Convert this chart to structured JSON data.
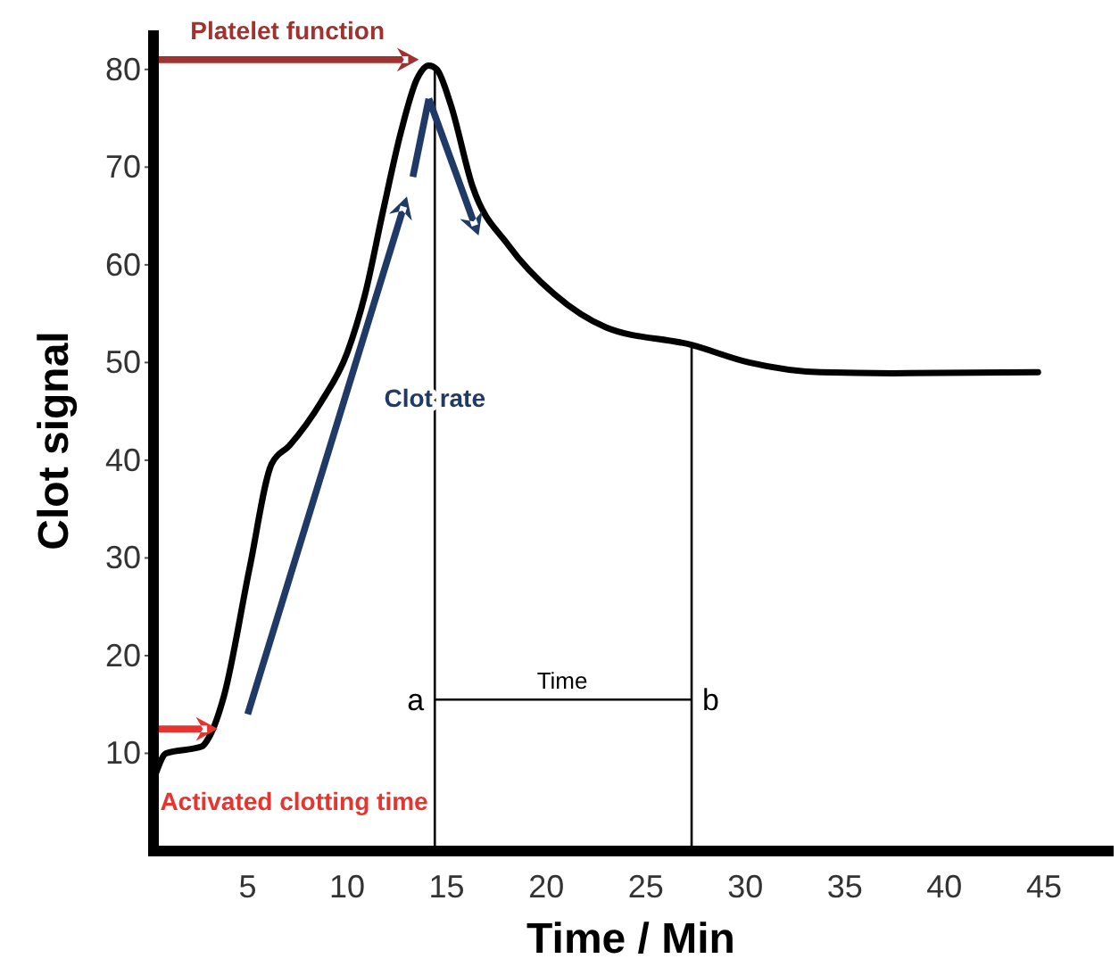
{
  "chart_data": {
    "type": "line",
    "xlabel": "Time / Min",
    "ylabel": "Clot signal",
    "xlim": [
      0,
      48.5
    ],
    "ylim": [
      0,
      84
    ],
    "xticks": [
      5,
      10,
      15,
      20,
      25,
      30,
      35,
      40,
      45
    ],
    "yticks": [
      10,
      20,
      30,
      40,
      50,
      60,
      70,
      80
    ],
    "grid": false,
    "series": [
      {
        "color": "#000000",
        "x": [
          0.4,
          0.9,
          2.7,
          3.1,
          3.8,
          5.1,
          6.2,
          7.1,
          8.7,
          10,
          10.9,
          11.8,
          12.7,
          13.5,
          14.1,
          14.5,
          15.2,
          16.3,
          18.1,
          20.4,
          23,
          27.3,
          30.2,
          33.8,
          37.4,
          44.7
        ],
        "values": [
          8,
          10,
          10.7,
          11.8,
          15.8,
          29,
          39.6,
          41.5,
          46,
          51,
          57,
          65.5,
          73.6,
          79,
          80.4,
          80,
          76.4,
          68,
          62,
          57,
          53.6,
          51.8,
          50,
          49,
          48.9,
          49
        ]
      }
    ],
    "ref_lines": [
      {
        "axis": "x",
        "value": 14.4,
        "label": "a",
        "color": "#000000"
      },
      {
        "axis": "x",
        "value": 27.3,
        "label": "b",
        "color": "#000000"
      }
    ],
    "annotations": [
      "Platelet function",
      "Clot rate",
      "Activated clotting time",
      "Time"
    ]
  }
}
